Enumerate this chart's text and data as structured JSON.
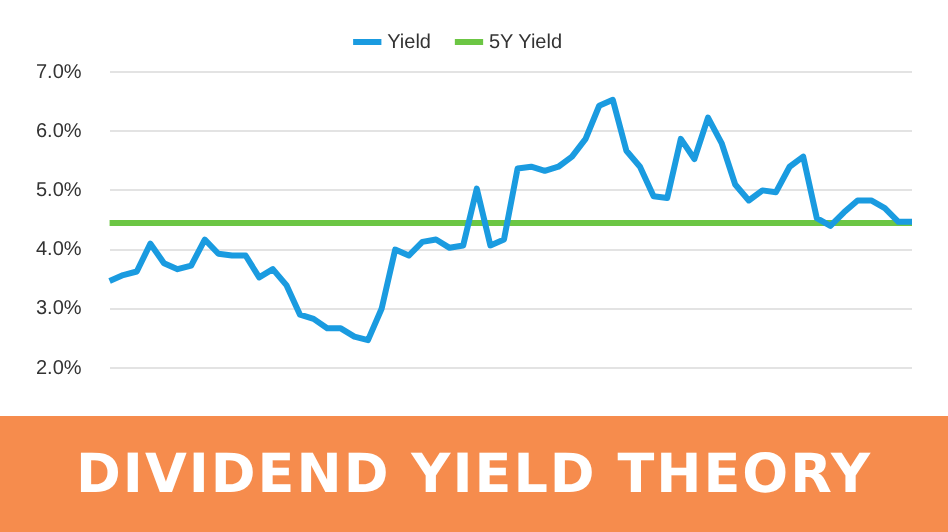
{
  "chart_data": {
    "type": "line",
    "title": "DIVIDEND YIELD THEORY",
    "categories": [
      null,
      null,
      null,
      null,
      null,
      null,
      null,
      null,
      null,
      null,
      null,
      null,
      null,
      null,
      null,
      null,
      null,
      null,
      null,
      null,
      null,
      null,
      null,
      null,
      null,
      null,
      null,
      null,
      null,
      null,
      null,
      null,
      null,
      null,
      null,
      null,
      null,
      null,
      null,
      null,
      null,
      null,
      null,
      null,
      null,
      null,
      null,
      null,
      null,
      null,
      null,
      null,
      null,
      null,
      null,
      null,
      null,
      null,
      null,
      null
    ],
    "series": [
      {
        "name": "Yield",
        "color": "#1a9be0",
        "values": [
          3.47,
          3.57,
          3.63,
          4.1,
          3.77,
          3.67,
          3.73,
          4.17,
          3.93,
          3.9,
          3.9,
          3.53,
          3.67,
          3.4,
          2.9,
          2.83,
          2.67,
          2.67,
          2.53,
          2.47,
          3.0,
          4.0,
          3.9,
          4.13,
          4.17,
          4.03,
          4.07,
          5.03,
          4.07,
          4.17,
          5.37,
          5.4,
          5.33,
          5.4,
          5.57,
          5.87,
          6.43,
          6.53,
          5.67,
          5.4,
          4.9,
          4.87,
          5.87,
          5.53,
          6.23,
          5.8,
          5.1,
          4.83,
          5.0,
          4.97,
          5.4,
          5.57,
          4.53,
          4.4,
          4.63,
          4.83,
          4.83,
          4.7,
          4.47,
          4.47
        ]
      },
      {
        "name": "5Y Yield",
        "color": "#6cc644",
        "values": [
          4.45,
          4.45,
          4.45,
          4.45,
          4.45,
          4.45,
          4.45,
          4.45,
          4.45,
          4.45,
          4.45,
          4.45,
          4.45,
          4.45,
          4.45,
          4.45,
          4.45,
          4.45,
          4.45,
          4.45,
          4.45,
          4.45,
          4.45,
          4.45,
          4.45,
          4.45,
          4.45,
          4.45,
          4.45,
          4.45,
          4.45,
          4.45,
          4.45,
          4.45,
          4.45,
          4.45,
          4.45,
          4.45,
          4.45,
          4.45,
          4.45,
          4.45,
          4.45,
          4.45,
          4.45,
          4.45,
          4.45,
          4.45,
          4.45,
          4.45,
          4.45,
          4.45,
          4.45,
          4.45,
          4.45,
          4.45,
          4.45,
          4.45,
          4.45,
          4.45
        ]
      }
    ],
    "ylim": [
      2,
      7
    ],
    "yticks": [
      {
        "value": 2,
        "label": "2.0%"
      },
      {
        "value": 3,
        "label": "3.0%"
      },
      {
        "value": 4,
        "label": "4.0%"
      },
      {
        "value": 5,
        "label": "5.0%"
      },
      {
        "value": 6,
        "label": "6.0%"
      },
      {
        "value": 7,
        "label": "7.0%"
      }
    ],
    "grid": "y",
    "legend": "top",
    "marker": "none",
    "line_style": "solid",
    "tick_labels": "y"
  }
}
